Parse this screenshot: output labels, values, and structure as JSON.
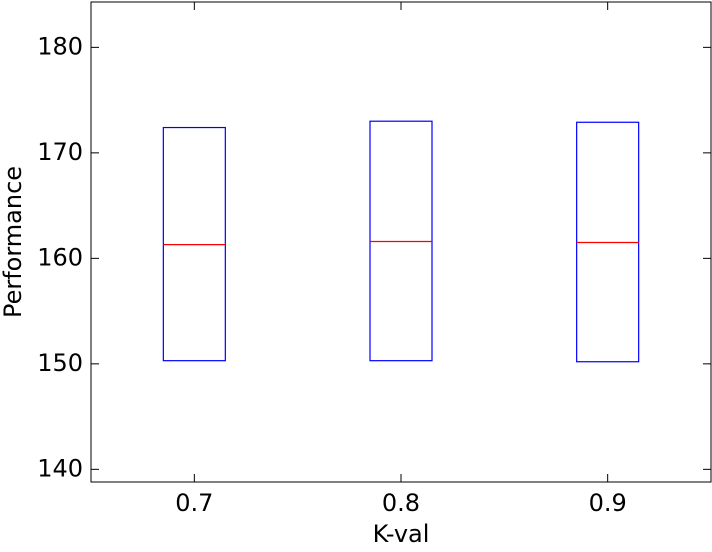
{
  "chart_data": {
    "type": "box",
    "x_label": "K-val",
    "y_label": "Performance",
    "categories": [
      "0.7",
      "0.8",
      "0.9"
    ],
    "q1": [
      150.3,
      150.3,
      150.2
    ],
    "median": [
      161.3,
      161.6,
      161.5
    ],
    "q3": [
      172.4,
      173.0,
      172.9
    ],
    "box_color": "#0000ff",
    "median_color": "#ff0000",
    "ylim": [
      138.8,
      184.3
    ],
    "yticks": [
      140,
      150,
      160,
      170,
      180
    ]
  }
}
